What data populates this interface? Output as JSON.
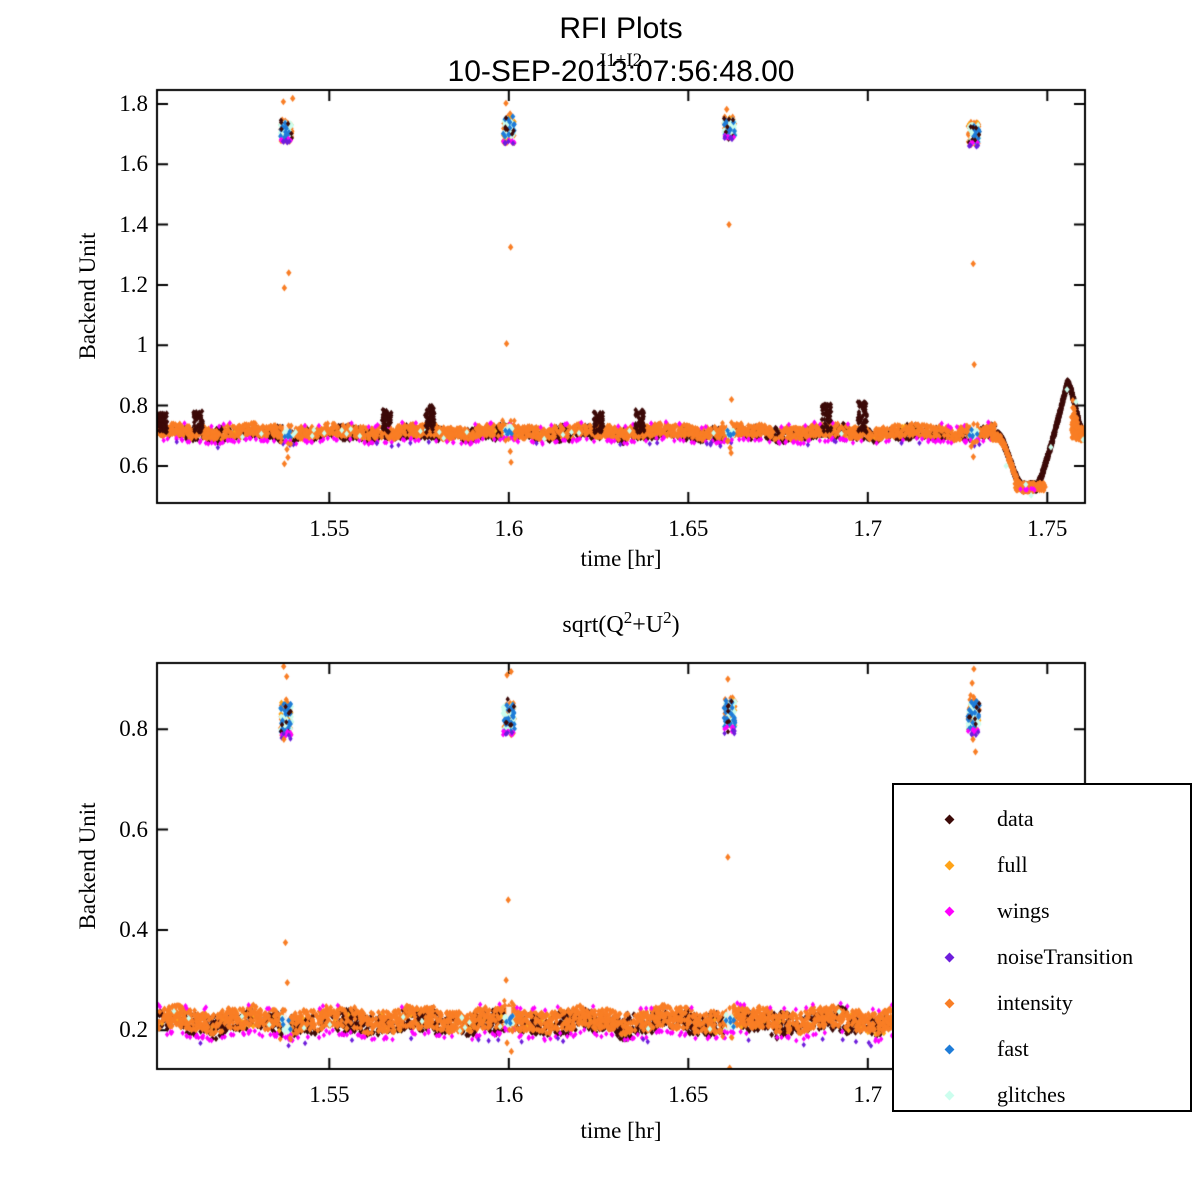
{
  "titles": {
    "main": "RFI Plots",
    "datetime": "10-SEP-2013:07:56:48.00"
  },
  "plot2_title_parts": {
    "p1": "sqrt(Q",
    "s1": "2",
    "p2": "+U",
    "s2": "2",
    "p3": ")"
  },
  "legend": {
    "position": "bottom-right-overlay",
    "entries": [
      {
        "label": "data",
        "color": "#3C0A08"
      },
      {
        "label": "full",
        "color": "#FFA318"
      },
      {
        "label": "wings",
        "color": "#FF00FF"
      },
      {
        "label": "noiseTransition",
        "color": "#6E1EDC"
      },
      {
        "label": "intensity",
        "color": "#F97E25"
      },
      {
        "label": "fast",
        "color": "#1E7CD8"
      },
      {
        "label": "glitches",
        "color": "#CCFEEE"
      }
    ]
  },
  "chart_data": [
    {
      "type": "scatter",
      "marker": "diamond",
      "title": "I1+I2",
      "xlabel": "time [hr]",
      "ylabel": "Backend Unit",
      "xlim": [
        1.502,
        1.7605
      ],
      "ylim": [
        0.477,
        1.846
      ],
      "x_ticks": [
        "1.55",
        "1.6",
        "1.65",
        "1.7",
        "1.75"
      ],
      "y_ticks": [
        "0.6",
        "0.8",
        "1",
        "1.2",
        "1.4",
        "1.6",
        "1.8"
      ],
      "grid": false,
      "baseline": {
        "x_start": 1.502,
        "x_end": 1.7355,
        "y_center": 0.71,
        "orange_halfwidth": 0.02,
        "dark_halfwidth": 0.027,
        "n_intensity": 3000,
        "n_data": 2400,
        "n_full": 120,
        "n_wings": 240,
        "n_noise": 26,
        "n_glitch_sparse": 24
      },
      "dark_spikes": [
        {
          "x": 1.5035,
          "top": 0.775
        },
        {
          "x": 1.5135,
          "top": 0.782
        },
        {
          "x": 1.566,
          "top": 0.79
        },
        {
          "x": 1.578,
          "top": 0.8
        },
        {
          "x": 1.625,
          "top": 0.778
        },
        {
          "x": 1.6365,
          "top": 0.786
        },
        {
          "x": 1.6885,
          "top": 0.806
        },
        {
          "x": 1.6985,
          "top": 0.812
        }
      ],
      "events": [
        {
          "x": 1.538,
          "core": [
            1.675,
            1.748
          ],
          "top_pts": [
            1.807,
            1.818
          ],
          "out_up": [
            1.24,
            1.19
          ],
          "out_down": [
            0.655,
            0.628,
            0.607
          ]
        },
        {
          "x": 1.6,
          "core": [
            1.67,
            1.77
          ],
          "top_pts": [
            1.802
          ],
          "out_up": [
            1.325,
            1.005
          ],
          "out_down": [
            0.648,
            0.612
          ]
        },
        {
          "x": 1.6615,
          "core": [
            1.685,
            1.758
          ],
          "top_pts": [
            1.782
          ],
          "out_up": [
            1.4
          ],
          "out_down": [
            0.82,
            0.66,
            0.643
          ]
        },
        {
          "x": 1.7295,
          "core": [
            1.662,
            1.742
          ],
          "top_pts": [],
          "out_up": [
            1.27,
            0.936
          ],
          "out_down": [
            0.665,
            0.63
          ]
        }
      ],
      "event_mix": {
        "glitches": 40,
        "fast": 12,
        "intensity": 34,
        "wings": 6,
        "noiseTransition": 5,
        "data": 7
      },
      "end_feature": {
        "x_start": 1.736,
        "dip_x": 1.7435,
        "dip_y": 0.528,
        "flat_until": 1.747,
        "peak_x": 1.7555,
        "peak_y": 0.872,
        "x_end": 1.7605,
        "end_y": 0.7,
        "glitch_pts": [
          [
            1.7385,
            0.6
          ],
          [
            1.744,
            0.538
          ],
          [
            1.7455,
            0.502
          ],
          [
            1.751,
            0.662
          ],
          [
            1.7555,
            0.853
          ],
          [
            1.758,
            0.812
          ],
          [
            1.76,
            0.687
          ]
        ]
      }
    },
    {
      "type": "scatter",
      "marker": "diamond",
      "title": "sqrt(Q2+U2)",
      "xlabel": "time [hr]",
      "ylabel": "Backend Unit",
      "xlim": [
        1.502,
        1.7605
      ],
      "ylim": [
        0.123,
        0.932
      ],
      "x_ticks": [
        "1.55",
        "1.6",
        "1.65",
        "1.7",
        "1.75"
      ],
      "y_ticks": [
        "0.2",
        "0.4",
        "0.6",
        "0.8"
      ],
      "grid": false,
      "baseline": {
        "x_start": 1.502,
        "x_end": 1.7605,
        "y_center": 0.218,
        "orange_halfwidth": 0.021,
        "dark_halfwidth": 0.027,
        "n_intensity": 3400,
        "n_data": 2700,
        "n_full": 130,
        "n_wings": 260,
        "n_noise": 22,
        "n_glitch_sparse": 26
      },
      "dark_spikes": [],
      "events": [
        {
          "x": 1.538,
          "core": [
            0.785,
            0.862
          ],
          "top_pts": [],
          "out_up": [
            0.925,
            0.905
          ],
          "out_down": [
            0.78,
            0.375,
            0.295
          ]
        },
        {
          "x": 1.6,
          "core": [
            0.788,
            0.86
          ],
          "top_pts": [],
          "out_up": [
            0.915,
            0.908
          ],
          "out_down": [
            0.46,
            0.3,
            0.175,
            0.158
          ]
        },
        {
          "x": 1.6615,
          "core": [
            0.795,
            0.865
          ],
          "top_pts": [],
          "out_up": [
            0.9
          ],
          "out_down": [
            0.545,
            0.125
          ]
        },
        {
          "x": 1.7295,
          "core": [
            0.79,
            0.868
          ],
          "top_pts": [],
          "out_up": [
            0.92,
            0.892
          ],
          "out_down": [
            0.78,
            0.755
          ]
        }
      ],
      "event_mix": {
        "glitches": 34,
        "fast": 22,
        "intensity": 30,
        "wings": 8,
        "noiseTransition": 4,
        "data": 7
      }
    }
  ]
}
